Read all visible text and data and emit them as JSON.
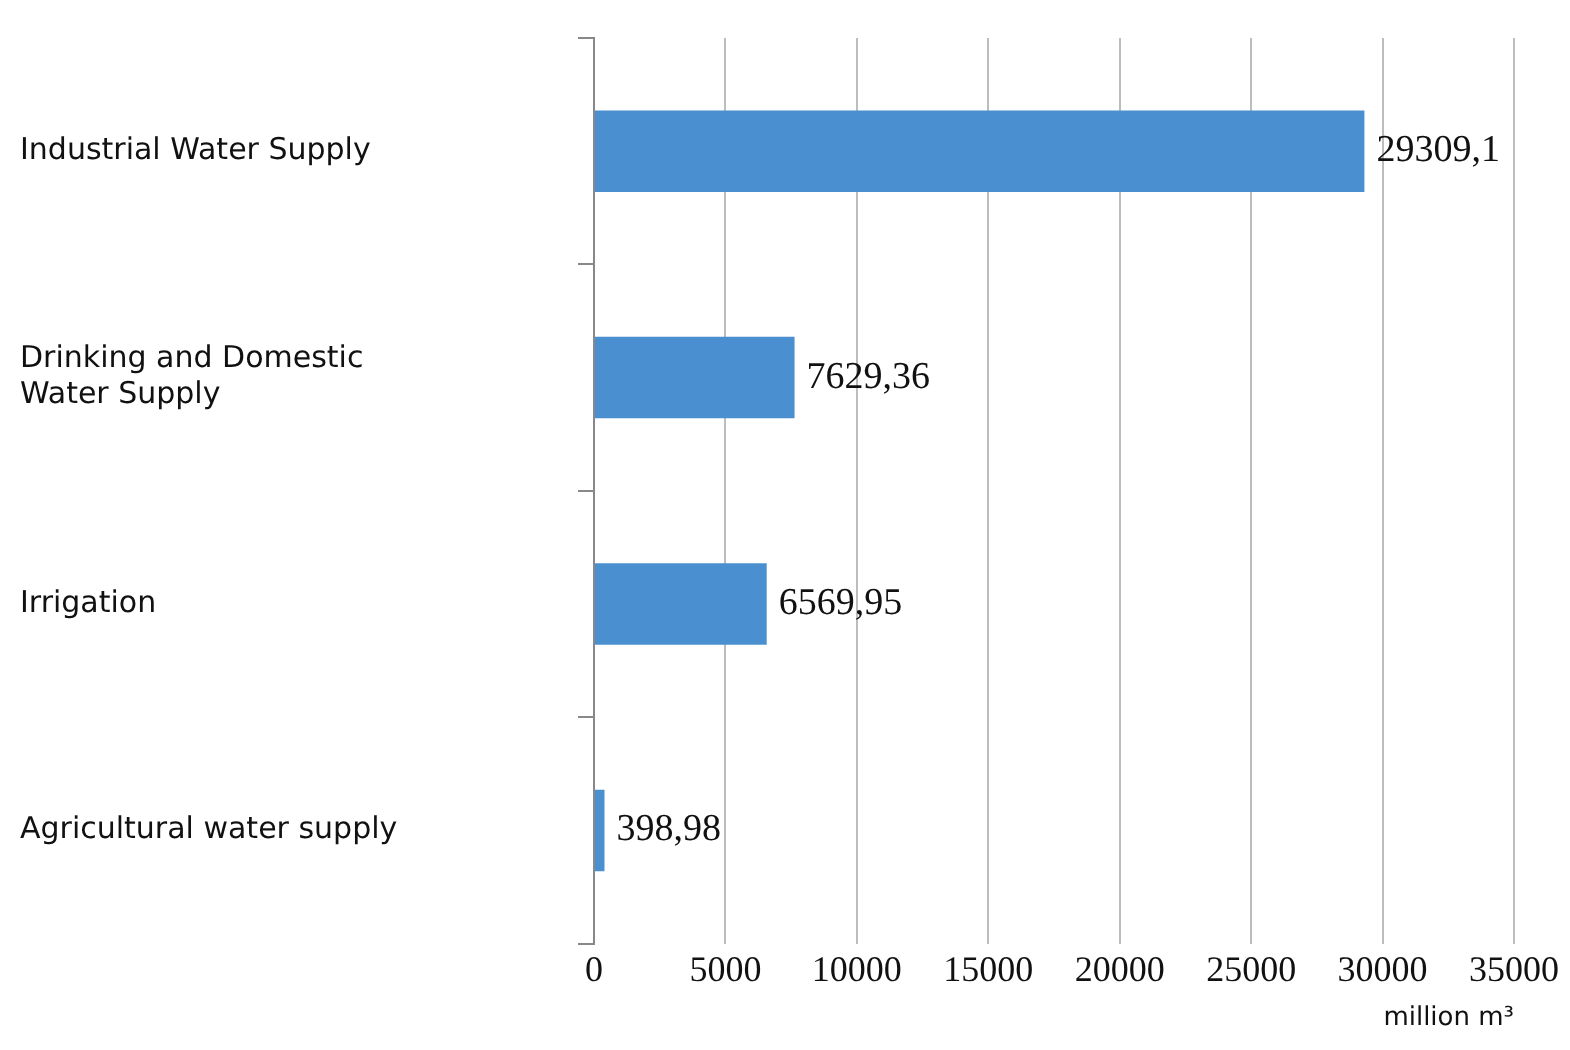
{
  "chart_data": {
    "type": "bar",
    "orientation": "horizontal",
    "xlabel": "million m³",
    "categories": [
      "Industrial Water Supply",
      "Drinking and Domestic Water Supply",
      "Irrigation",
      "Agricultural water supply"
    ],
    "values": [
      29309.1,
      7629.36,
      6569.95,
      398.98
    ],
    "value_labels": [
      "29309,1",
      "7629,36",
      "6569,95",
      "398,98"
    ],
    "color": "#4a8fd0",
    "xlim": [
      0,
      35000
    ],
    "xticks": [
      0,
      5000,
      10000,
      15000,
      20000,
      25000,
      30000,
      35000
    ],
    "grid": "x",
    "legend": false
  }
}
